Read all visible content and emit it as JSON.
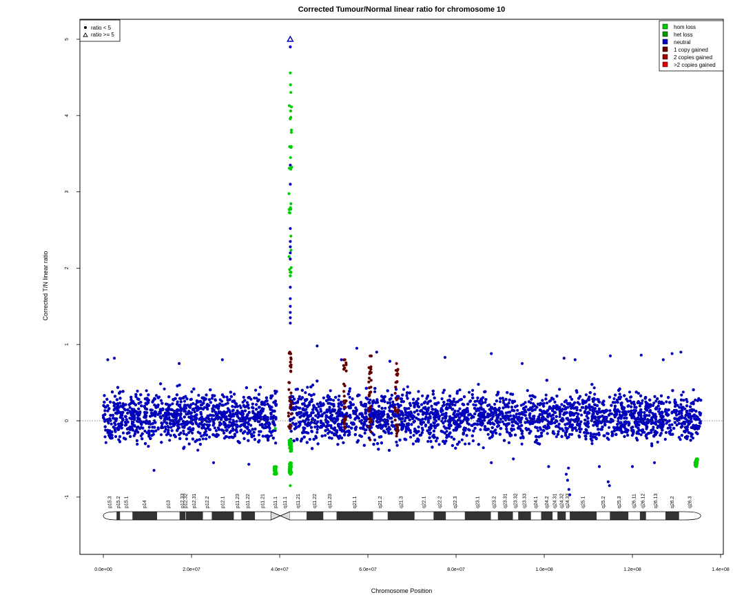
{
  "chart_data": {
    "type": "scatter",
    "title": "Corrected Tumour/Normal linear ratio for chromosome  10",
    "xlabel": "Chromosome Position",
    "ylabel": "Corrected T/N linear ratio",
    "xlim": [
      -5000000,
      140500000
    ],
    "ylim": [
      -1.75,
      5.25
    ],
    "x_ticks": [
      0,
      20000000,
      40000000,
      60000000,
      80000000,
      100000000,
      120000000,
      140000000
    ],
    "x_tick_labels": [
      "0.0e+00",
      "2.0e+07",
      "4.0e+07",
      "6.0e+07",
      "8.0e+07",
      "1.0e+08",
      "1.2e+08",
      "1.4e+08"
    ],
    "y_ticks": [
      -1,
      0,
      1,
      2,
      3,
      4,
      5
    ],
    "y_tick_labels": [
      "-1",
      "0",
      "1",
      "2",
      "3",
      "4",
      "5"
    ],
    "reference_line": 0,
    "shape_legend": {
      "position": "top-left",
      "items": [
        {
          "label": "ratio < 5",
          "shape": "dot"
        },
        {
          "label": "ratio >= 5",
          "shape": "triangle"
        }
      ]
    },
    "color_legend": {
      "position": "top-right",
      "items": [
        {
          "label": "hom loss",
          "color": "#00cc00"
        },
        {
          "label": "het loss",
          "color": "#009900"
        },
        {
          "label": "neutral",
          "color": "#0000bb"
        },
        {
          "label": "1 copy gained",
          "color": "#660000"
        },
        {
          "label": "2 copies gained",
          "color": "#990000"
        },
        {
          "label": ">2 copies gained",
          "color": "#dd0000"
        }
      ]
    },
    "neutral_band": {
      "x_range": [
        0,
        135500000
      ],
      "approx_range": [
        -0.5,
        0.6
      ],
      "centromere_gap": [
        39300000,
        42300000
      ]
    },
    "series": [
      {
        "name": "neutral",
        "color": "#0000bb",
        "points": [
          [
            42400000,
            4.9
          ],
          [
            42400000,
            3.35
          ],
          [
            42400000,
            3.1
          ],
          [
            42400000,
            2.52
          ],
          [
            42400000,
            2.35
          ],
          [
            42400000,
            2.28
          ],
          [
            42400000,
            2.2
          ],
          [
            42400000,
            2.12
          ],
          [
            42400000,
            1.9
          ],
          [
            42400000,
            1.75
          ],
          [
            42400000,
            1.6
          ],
          [
            42400000,
            1.5
          ],
          [
            42400000,
            1.42
          ],
          [
            42400000,
            1.35
          ],
          [
            42400000,
            1.28
          ],
          [
            17200000,
            0.75
          ],
          [
            27000000,
            0.8
          ],
          [
            48500000,
            0.98
          ],
          [
            54000000,
            0.8
          ],
          [
            57500000,
            0.95
          ],
          [
            62000000,
            0.9
          ],
          [
            65000000,
            0.78
          ],
          [
            77500000,
            0.83
          ],
          [
            88000000,
            0.88
          ],
          [
            95000000,
            0.75
          ],
          [
            104500000,
            0.82
          ],
          [
            107000000,
            0.8
          ],
          [
            115000000,
            0.85
          ],
          [
            122000000,
            0.86
          ],
          [
            127000000,
            0.8
          ],
          [
            129000000,
            0.88
          ],
          [
            131000000,
            0.9
          ],
          [
            1000000,
            0.8
          ],
          [
            2500000,
            0.82
          ],
          [
            11500000,
            -0.65
          ],
          [
            25000000,
            -0.55
          ],
          [
            33000000,
            -0.57
          ],
          [
            88000000,
            -0.55
          ],
          [
            93000000,
            -0.5
          ],
          [
            101000000,
            -0.6
          ],
          [
            105500000,
            -0.62
          ],
          [
            105000000,
            -0.7
          ],
          [
            105300000,
            -0.78
          ],
          [
            105600000,
            -0.9
          ],
          [
            105800000,
            -0.97
          ],
          [
            112500000,
            -0.6
          ],
          [
            114500000,
            -0.8
          ],
          [
            114800000,
            -0.85
          ],
          [
            120000000,
            -0.6
          ],
          [
            125000000,
            -0.55
          ]
        ]
      },
      {
        "name": "ratio >= 5",
        "color": "#0000bb",
        "points": [
          [
            42400000,
            5.0
          ]
        ]
      },
      {
        "name": "hom loss",
        "color": "#00cc00",
        "points": [
          [
            42400000,
            4.56
          ],
          [
            42400000,
            1.9
          ],
          [
            42400000,
            -0.25
          ],
          [
            42400000,
            -0.4
          ],
          [
            42400000,
            -0.55
          ],
          [
            42400000,
            -0.7
          ],
          [
            42400000,
            -0.85
          ],
          [
            39000000,
            -0.1
          ],
          [
            39000000,
            -0.6
          ],
          [
            39000000,
            -0.7
          ],
          [
            134500000,
            -0.5
          ],
          [
            134500000,
            -0.6
          ]
        ]
      },
      {
        "name": "1 copy gained",
        "color": "#660000",
        "points": [
          [
            54800000,
            0.8
          ],
          [
            54800000,
            -0.1
          ],
          [
            60500000,
            0.85
          ],
          [
            60500000,
            -0.25
          ],
          [
            66500000,
            0.75
          ],
          [
            66500000,
            -0.2
          ],
          [
            42300000,
            0.9
          ],
          [
            42300000,
            -0.1
          ]
        ]
      }
    ],
    "ideogram": {
      "bands": [
        {
          "name": "p15.3",
          "start": 0,
          "end": 3000000,
          "stain": "gneg"
        },
        {
          "name": "p15.2",
          "start": 3000000,
          "end": 3800000,
          "stain": "gpos"
        },
        {
          "name": "p15.1",
          "start": 3800000,
          "end": 6600000,
          "stain": "gneg"
        },
        {
          "name": "p14",
          "start": 6600000,
          "end": 12200000,
          "stain": "gpos"
        },
        {
          "name": "p13",
          "start": 12200000,
          "end": 17300000,
          "stain": "gneg"
        },
        {
          "name": "p12.33",
          "start": 17300000,
          "end": 18600000,
          "stain": "gpos"
        },
        {
          "name": "p12.32",
          "start": 18600000,
          "end": 18700000,
          "stain": "gneg"
        },
        {
          "name": "p12.31",
          "start": 18700000,
          "end": 22600000,
          "stain": "gpos"
        },
        {
          "name": "p12.2",
          "start": 22600000,
          "end": 24600000,
          "stain": "gneg"
        },
        {
          "name": "p12.1",
          "start": 24600000,
          "end": 29600000,
          "stain": "gpos"
        },
        {
          "name": "p11.23",
          "start": 29600000,
          "end": 31300000,
          "stain": "gneg"
        },
        {
          "name": "p11.22",
          "start": 31300000,
          "end": 34400000,
          "stain": "gpos"
        },
        {
          "name": "p11.21",
          "start": 34400000,
          "end": 38000000,
          "stain": "gneg"
        },
        {
          "name": "p11.1",
          "start": 38000000,
          "end": 40200000,
          "stain": "acen"
        },
        {
          "name": "q11.1",
          "start": 40200000,
          "end": 42300000,
          "stain": "acen"
        },
        {
          "name": "q11.21",
          "start": 42300000,
          "end": 46100000,
          "stain": "gneg"
        },
        {
          "name": "q11.22",
          "start": 46100000,
          "end": 49900000,
          "stain": "gpos"
        },
        {
          "name": "q11.23",
          "start": 49900000,
          "end": 52900000,
          "stain": "gneg"
        },
        {
          "name": "q21.1",
          "start": 52900000,
          "end": 61200000,
          "stain": "gpos"
        },
        {
          "name": "q21.2",
          "start": 61200000,
          "end": 64500000,
          "stain": "gneg"
        },
        {
          "name": "q21.3",
          "start": 64500000,
          "end": 70600000,
          "stain": "gpos"
        },
        {
          "name": "q22.1",
          "start": 70600000,
          "end": 74900000,
          "stain": "gneg"
        },
        {
          "name": "q22.2",
          "start": 74900000,
          "end": 77700000,
          "stain": "gpos"
        },
        {
          "name": "q22.3",
          "start": 77700000,
          "end": 82000000,
          "stain": "gneg"
        },
        {
          "name": "q23.1",
          "start": 82000000,
          "end": 87900000,
          "stain": "gpos"
        },
        {
          "name": "q23.2",
          "start": 87900000,
          "end": 89500000,
          "stain": "gneg"
        },
        {
          "name": "q23.31",
          "start": 89500000,
          "end": 92900000,
          "stain": "gpos"
        },
        {
          "name": "q23.32",
          "start": 92900000,
          "end": 94100000,
          "stain": "gneg"
        },
        {
          "name": "q23.33",
          "start": 94100000,
          "end": 97000000,
          "stain": "gpos"
        },
        {
          "name": "q24.1",
          "start": 97000000,
          "end": 99300000,
          "stain": "gneg"
        },
        {
          "name": "q24.2",
          "start": 99300000,
          "end": 101900000,
          "stain": "gpos"
        },
        {
          "name": "q24.31",
          "start": 101900000,
          "end": 103000000,
          "stain": "gneg"
        },
        {
          "name": "q24.32",
          "start": 103000000,
          "end": 104900000,
          "stain": "gpos"
        },
        {
          "name": "q24.33",
          "start": 104900000,
          "end": 105800000,
          "stain": "gneg"
        },
        {
          "name": "q25.1",
          "start": 105800000,
          "end": 111900000,
          "stain": "gpos"
        },
        {
          "name": "q25.2",
          "start": 111900000,
          "end": 114900000,
          "stain": "gneg"
        },
        {
          "name": "q25.3",
          "start": 114900000,
          "end": 119100000,
          "stain": "gpos"
        },
        {
          "name": "q26.11",
          "start": 119100000,
          "end": 121700000,
          "stain": "gneg"
        },
        {
          "name": "q26.12",
          "start": 121700000,
          "end": 123100000,
          "stain": "gpos"
        },
        {
          "name": "q26.13",
          "start": 123100000,
          "end": 127500000,
          "stain": "gneg"
        },
        {
          "name": "q26.2",
          "start": 127500000,
          "end": 130600000,
          "stain": "gpos"
        },
        {
          "name": "q26.3",
          "start": 130600000,
          "end": 135500000,
          "stain": "gneg"
        }
      ]
    }
  }
}
